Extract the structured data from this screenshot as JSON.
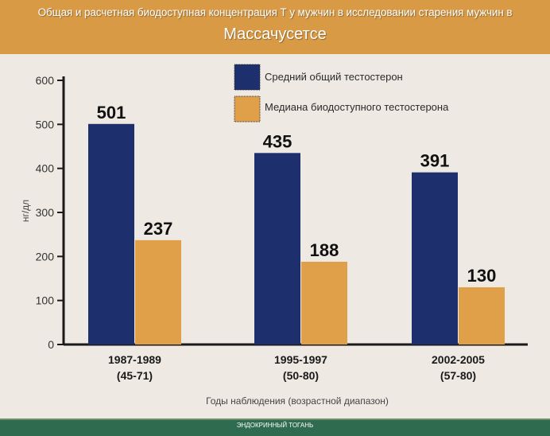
{
  "header": {
    "title_line1": "Общая и расчетная биодоступная концентрация Т у мужчин в исследовании старения мужчин в",
    "title_line2": "Массачусетсе"
  },
  "footer": {
    "text": "ЭНДОКРИННЫЙ ТОГАНЬ"
  },
  "colors": {
    "header_bg": "#d89a45",
    "series_total": "#1e2f6e",
    "series_bioavailable": "#e0a04a",
    "footer_bg": "#2e6b4f",
    "page_bg": "#eeeae3"
  },
  "chart_data": {
    "type": "bar",
    "title": "Общая и расчетная биодоступная концентрация Т у мужчин в исследовании старения мужчин в Массачусетсе",
    "ylabel": "нг/дл",
    "xlabel": "Годы наблюдения (возрастной диапазон)",
    "ylim": [
      0,
      600
    ],
    "yticks": [
      "0",
      "100",
      "200",
      "300",
      "400",
      "500",
      "600"
    ],
    "categories": [
      {
        "line1": "1987-1989",
        "line2": "(45-71)"
      },
      {
        "line1": "1995-1997",
        "line2": "(50-80)"
      },
      {
        "line1": "2002-2005",
        "line2": "(57-80)"
      }
    ],
    "series": [
      {
        "name": "Средний общий тестостерон",
        "values": [
          501,
          435,
          391
        ],
        "labels": [
          "501",
          "435",
          "391"
        ]
      },
      {
        "name": "Медиана биодоступного тестостерона",
        "values": [
          237,
          188,
          130
        ],
        "labels": [
          "237",
          "188",
          "130"
        ]
      }
    ],
    "legend_position": "top-right",
    "grid": false
  }
}
